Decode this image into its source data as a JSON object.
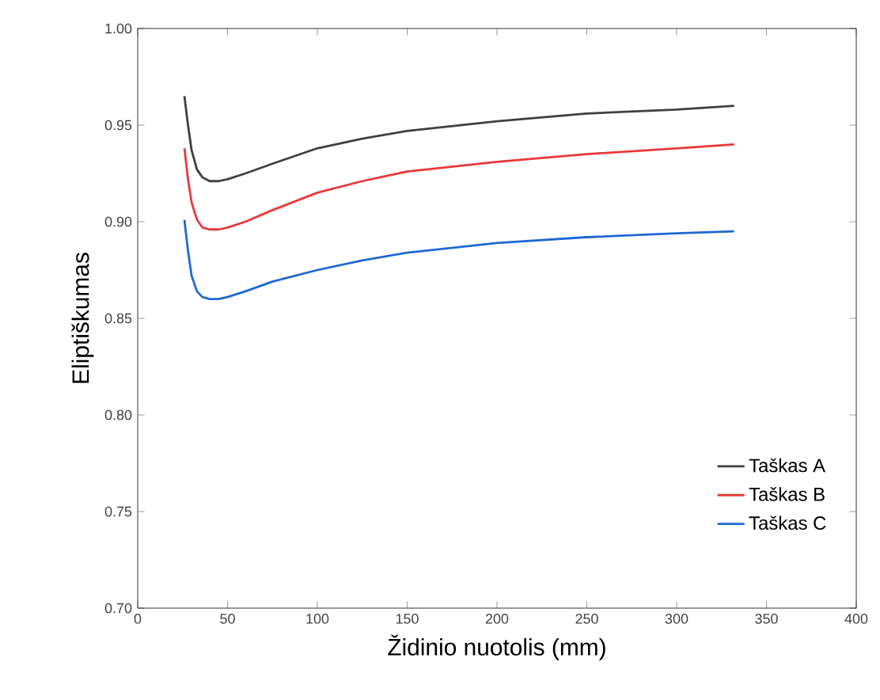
{
  "chart_data": {
    "type": "line",
    "xlabel": "Židinio nuotolis (mm)",
    "ylabel": "Eliptiškumas",
    "x": [
      26,
      28,
      30,
      33,
      36,
      40,
      45,
      50,
      60,
      75,
      100,
      125,
      150,
      200,
      250,
      300,
      332
    ],
    "series": [
      {
        "name": "Taškas A",
        "color": "#404040",
        "values": [
          0.965,
          0.95,
          0.937,
          0.927,
          0.923,
          0.921,
          0.921,
          0.922,
          0.925,
          0.93,
          0.938,
          0.943,
          0.947,
          0.952,
          0.956,
          0.958,
          0.96
        ]
      },
      {
        "name": "Taškas B",
        "color": "#e8393a",
        "values": [
          0.938,
          0.922,
          0.91,
          0.901,
          0.897,
          0.896,
          0.896,
          0.897,
          0.9,
          0.906,
          0.915,
          0.921,
          0.926,
          0.931,
          0.935,
          0.938,
          0.94
        ]
      },
      {
        "name": "Taškas C",
        "color": "#1f68d4",
        "values": [
          0.901,
          0.885,
          0.872,
          0.864,
          0.861,
          0.86,
          0.86,
          0.861,
          0.864,
          0.869,
          0.875,
          0.88,
          0.884,
          0.889,
          0.892,
          0.894,
          0.895
        ]
      }
    ],
    "xlim": [
      0,
      400
    ],
    "ylim": [
      0.7,
      1.0
    ],
    "xticks": [
      0,
      50,
      100,
      150,
      200,
      250,
      300,
      350,
      400
    ],
    "yticks": [
      {
        "value": 0.7,
        "label": "0.70"
      },
      {
        "value": 0.75,
        "label": "0.75"
      },
      {
        "value": 0.8,
        "label": "0.80"
      },
      {
        "value": 0.85,
        "label": "0.85"
      },
      {
        "value": 0.9,
        "label": "0.90"
      },
      {
        "value": 0.95,
        "label": "0.95"
      },
      {
        "value": 1.0,
        "label": "1.00"
      }
    ],
    "grid": false,
    "legend": "bottom right",
    "marker": "none",
    "line_style": "solid"
  }
}
